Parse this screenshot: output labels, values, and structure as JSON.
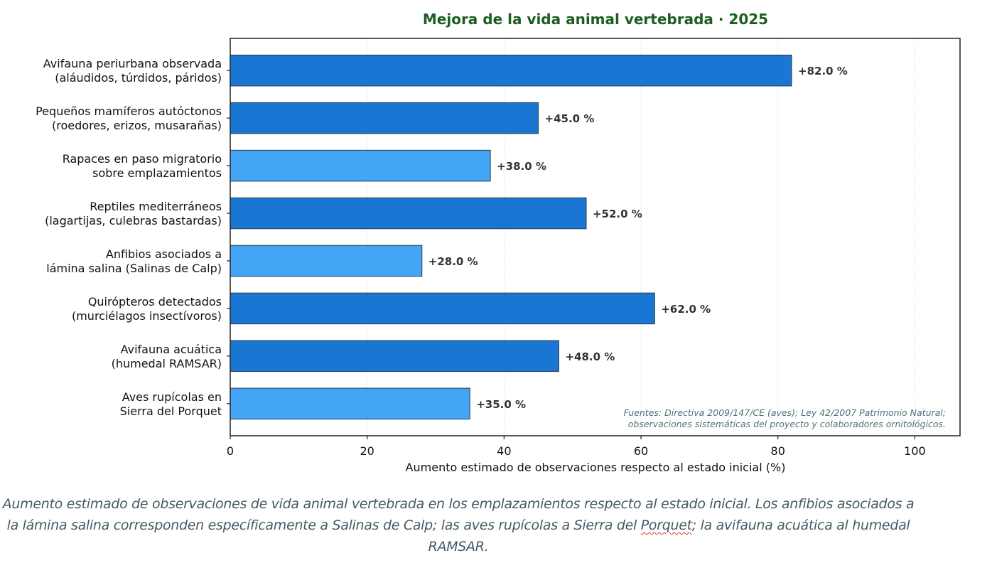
{
  "chart_data": {
    "type": "bar",
    "orientation": "horizontal",
    "title": "Mejora de la vida animal vertebrada · 2025",
    "xlabel": "Aumento estimado de observaciones respecto al estado inicial (%)",
    "ylabel": "",
    "xlim": [
      0,
      106.6
    ],
    "xticks": [
      0,
      20,
      40,
      60,
      80,
      100
    ],
    "grid": "x-dotted",
    "categories": [
      [
        "Avifauna periurbana observada",
        "(aláudidos, túrdidos, páridos)"
      ],
      [
        "Pequeños mamíferos autóctonos",
        "(roedores, erizos, musarañas)"
      ],
      [
        "Rapaces en paso migratorio",
        "sobre emplazamientos"
      ],
      [
        "Reptiles mediterráneos",
        "(lagartijas, culebras bastardas)"
      ],
      [
        "Anfibios asociados a",
        "lámina salina (Salinas de Calp)"
      ],
      [
        "Quirópteros detectados",
        "(murciélagos insectívoros)"
      ],
      [
        "Avifauna acuática",
        "(humedal RAMSAR)"
      ],
      [
        "Aves rupícolas en",
        "Sierra del Porquet"
      ]
    ],
    "values": [
      82.0,
      45.0,
      38.0,
      52.0,
      28.0,
      62.0,
      48.0,
      35.0
    ],
    "value_labels": [
      "+82.0 %",
      "+45.0 %",
      "+38.0 %",
      "+52.0 %",
      "+28.0 %",
      "+62.0 %",
      "+48.0 %",
      "+35.0 %"
    ],
    "bar_color_group": [
      "dark",
      "dark",
      "light",
      "dark",
      "light",
      "dark",
      "dark",
      "light"
    ],
    "colors": {
      "dark": "#1976D2",
      "light": "#42A5F5",
      "edge": "#2E3B45",
      "title": "#1B5E20",
      "value_label": "#333333",
      "source_note": "#546E7A"
    },
    "source_note": [
      "Fuentes: Directiva 2009/147/CE (aves); Ley 42/2007 Patrimonio Natural;",
      "observaciones sistemáticas del proyecto y colaboradores ornitológicos."
    ]
  },
  "caption": {
    "before": "Aumento estimado de observaciones de vida animal vertebrada en los emplazamientos respecto al estado inicial. Los anfibios asociados a la lámina salina corresponden específicamente a Salinas de Calp; las aves rupícolas a Sierra del ",
    "flagged_word": "Porquet",
    "after": "; la avifauna acuática al humedal RAMSAR."
  }
}
